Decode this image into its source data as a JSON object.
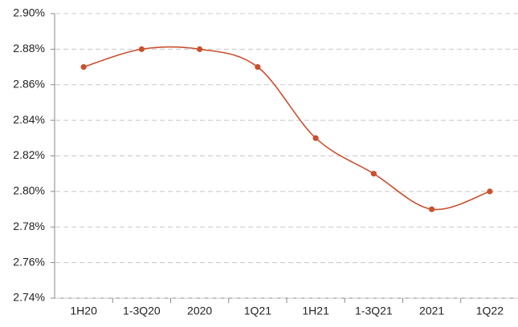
{
  "chart_data": {
    "type": "line",
    "categories": [
      "1H20",
      "1-3Q20",
      "2020",
      "1Q21",
      "1H21",
      "1-3Q21",
      "2021",
      "1Q22"
    ],
    "series": [
      {
        "name": "rate",
        "color": "#c9502e",
        "values": [
          2.87,
          2.88,
          2.88,
          2.87,
          2.83,
          2.81,
          2.79,
          2.8
        ]
      }
    ],
    "ylim": [
      2.74,
      2.9
    ],
    "yticks": [
      {
        "value": 2.74,
        "label": "2.74%"
      },
      {
        "value": 2.76,
        "label": "2.76%"
      },
      {
        "value": 2.78,
        "label": "2.78%"
      },
      {
        "value": 2.8,
        "label": "2.80%"
      },
      {
        "value": 2.82,
        "label": "2.82%"
      },
      {
        "value": 2.84,
        "label": "2.84%"
      },
      {
        "value": 2.86,
        "label": "2.86%"
      },
      {
        "value": 2.88,
        "label": "2.88%"
      },
      {
        "value": 2.9,
        "label": "2.90%"
      }
    ],
    "grid": true,
    "smooth": true
  }
}
